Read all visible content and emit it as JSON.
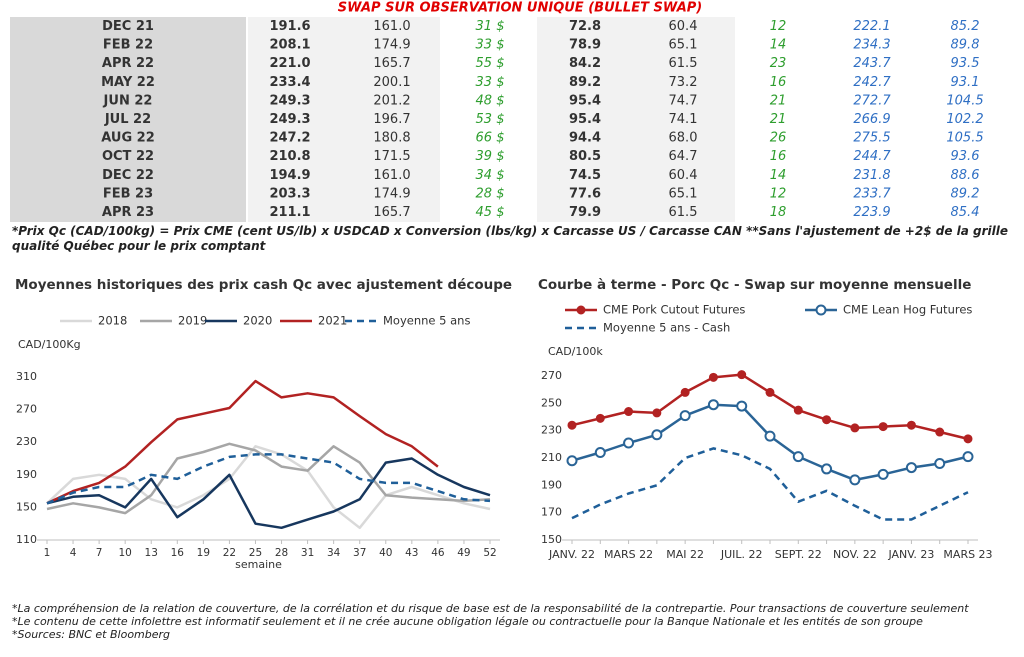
{
  "title": "SWAP SUR OBSERVATION UNIQUE (BULLET SWAP)",
  "table": {
    "rows": [
      [
        "DEC 21",
        "191.6",
        "161.0",
        "31 $",
        "72.8",
        "60.4",
        "12",
        "222.1",
        "85.2"
      ],
      [
        "FEB 22",
        "208.1",
        "174.9",
        "33 $",
        "78.9",
        "65.1",
        "14",
        "234.3",
        "89.8"
      ],
      [
        "APR 22",
        "221.0",
        "165.7",
        "55 $",
        "84.2",
        "61.5",
        "23",
        "243.7",
        "93.5"
      ],
      [
        "MAY 22",
        "233.4",
        "200.1",
        "33 $",
        "89.2",
        "73.2",
        "16",
        "242.7",
        "93.1"
      ],
      [
        "JUN 22",
        "249.3",
        "201.2",
        "48 $",
        "95.4",
        "74.7",
        "21",
        "272.7",
        "104.5"
      ],
      [
        "JUL 22",
        "249.3",
        "196.7",
        "53 $",
        "95.4",
        "74.1",
        "21",
        "266.9",
        "102.2"
      ],
      [
        "AUG 22",
        "247.2",
        "180.8",
        "66 $",
        "94.4",
        "68.0",
        "26",
        "275.5",
        "105.5"
      ],
      [
        "OCT 22",
        "210.8",
        "171.5",
        "39 $",
        "80.5",
        "64.7",
        "16",
        "244.7",
        "93.6"
      ],
      [
        "DEC 22",
        "194.9",
        "161.0",
        "34 $",
        "74.5",
        "60.4",
        "14",
        "231.8",
        "88.6"
      ],
      [
        "FEB 23",
        "203.3",
        "174.9",
        "28 $",
        "77.6",
        "65.1",
        "12",
        "233.7",
        "89.2"
      ],
      [
        "APR 23",
        "211.1",
        "165.7",
        "45 $",
        "79.9",
        "61.5",
        "18",
        "223.9",
        "85.4"
      ]
    ]
  },
  "table_note": "*Prix Qc (CAD/100kg) = Prix CME (cent US/lb) x USDCAD x Conversion (lbs/kg) x Carcasse US / Carcasse CAN **Sans l'ajustement de +2$ de la grille qualité Québec pour le prix comptant",
  "chart_data": [
    {
      "type": "line",
      "title": "Moyennes historiques des prix cash Qc avec ajustement découpe",
      "y_label": "CAD/100Kg",
      "x_label": "semaine",
      "x": [
        1,
        4,
        7,
        10,
        13,
        16,
        19,
        22,
        25,
        28,
        31,
        34,
        37,
        40,
        43,
        46,
        49,
        52
      ],
      "xlim": [
        1,
        52
      ],
      "xticks": [
        1,
        4,
        7,
        10,
        13,
        16,
        19,
        22,
        25,
        28,
        31,
        34,
        37,
        40,
        43,
        46,
        49,
        52
      ],
      "ylim": [
        110,
        310
      ],
      "yticks": [
        110,
        150,
        190,
        230,
        270,
        310
      ],
      "series": [
        {
          "name": "2018",
          "color": "#d9d9d9",
          "values": [
            155,
            185,
            190,
            185,
            160,
            150,
            165,
            185,
            225,
            215,
            195,
            150,
            125,
            165,
            175,
            165,
            155,
            148
          ]
        },
        {
          "name": "2019",
          "color": "#a6a6a6",
          "values": [
            148,
            155,
            150,
            143,
            165,
            210,
            218,
            228,
            220,
            200,
            195,
            225,
            205,
            165,
            162,
            160,
            158,
            160
          ]
        },
        {
          "name": "2020",
          "color": "#17375e",
          "values": [
            155,
            163,
            165,
            150,
            185,
            138,
            160,
            190,
            130,
            125,
            135,
            145,
            160,
            205,
            210,
            190,
            175,
            165
          ]
        },
        {
          "name": "2021",
          "color": "#b22222",
          "values": [
            155,
            170,
            180,
            200,
            230,
            258,
            265,
            272,
            305,
            285,
            290,
            285,
            262,
            240,
            225,
            200,
            null,
            null
          ]
        },
        {
          "name": "Moyenne 5 ans",
          "color": "#1f5f99",
          "dashed": true,
          "values": [
            155,
            168,
            175,
            175,
            190,
            185,
            200,
            212,
            215,
            215,
            210,
            205,
            185,
            180,
            180,
            170,
            160,
            158
          ]
        }
      ]
    },
    {
      "type": "line",
      "title": "Courbe à terme - Porc Qc - Swap sur moyenne mensuelle",
      "y_label": "CAD/100k",
      "categories": [
        "JANV. 22",
        null,
        "MARS 22",
        null,
        "MAI 22",
        null,
        "JUIL. 22",
        null,
        "SEPT. 22",
        null,
        "NOV. 22",
        null,
        "JANV. 23",
        null,
        "MARS 23"
      ],
      "ylim": [
        150,
        270
      ],
      "yticks": [
        150,
        170,
        190,
        210,
        230,
        250,
        270
      ],
      "series": [
        {
          "name": "CME Pork Cutout Futures",
          "color": "#b22222",
          "marker": "filled",
          "values": [
            234,
            239,
            244,
            243,
            258,
            269,
            271,
            258,
            245,
            238,
            232,
            233,
            234,
            229,
            224
          ]
        },
        {
          "name": "CME Lean Hog Futures",
          "color": "#2a6496",
          "marker": "open",
          "values": [
            208,
            214,
            221,
            227,
            241,
            249,
            248,
            226,
            211,
            202,
            194,
            198,
            203,
            206,
            211
          ]
        },
        {
          "name": "Moyenne 5 ans - Cash",
          "color": "#1f5f99",
          "dashed": true,
          "values": [
            166,
            176,
            184,
            190,
            210,
            217,
            212,
            202,
            178,
            186,
            175,
            165,
            165,
            175,
            185
          ]
        }
      ]
    }
  ],
  "footnotes": [
    "*La compréhension de la relation de couverture, de la corrélation et du risque de base est de la responsabilité de la contrepartie. Pour transactions de couverture seulement",
    "*Le contenu de cette infolettre est informatif seulement et il ne crée aucune obligation légale ou contractuelle pour la Banque Nationale et les entités de son groupe",
    "*Sources: BNC et Bloomberg"
  ]
}
